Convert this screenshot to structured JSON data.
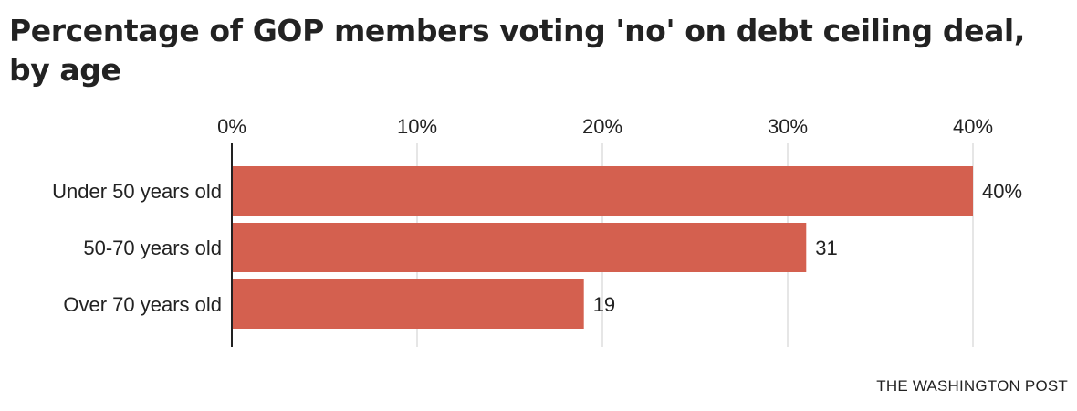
{
  "chart_data": {
    "type": "bar",
    "orientation": "horizontal",
    "title": "Percentage of GOP members voting 'no' on debt ceiling deal, by age",
    "categories": [
      "Under 50 years old",
      "50-70 years old",
      "Over 70 years old"
    ],
    "values": [
      40,
      31,
      19
    ],
    "data_labels": [
      "40%",
      "31",
      "19"
    ],
    "xlim": [
      0,
      40
    ],
    "x_ticks": [
      0,
      10,
      20,
      30,
      40
    ],
    "x_tick_labels": [
      "0%",
      "10%",
      "20%",
      "30%",
      "40%"
    ],
    "x_axis_position": "top",
    "grid": true,
    "colors": {
      "bar": "#d4604f",
      "grid": "#dddddd",
      "axis": "#222222"
    }
  },
  "source": "THE WASHINGTON POST"
}
